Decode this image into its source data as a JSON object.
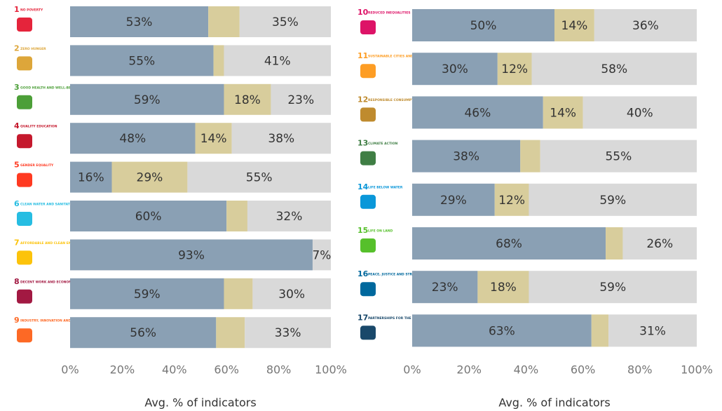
{
  "chart_data": [
    {
      "type": "bar",
      "orientation": "horizontal",
      "stacked": true,
      "categories": [
        "NO POVERTY",
        "ZERO HUNGER",
        "GOOD HEALTH AND WELL-BEING",
        "QUALITY EDUCATION",
        "GENDER EQUALITY",
        "CLEAN WATER AND SANITATION",
        "AFFORDABLE AND CLEAN ENERGY",
        "DECENT WORK AND ECONOMIC GROWTH",
        "INDUSTRY, INNOVATION AND INFRASTRUCTURE"
      ],
      "goal_numbers": [
        1,
        2,
        3,
        4,
        5,
        6,
        7,
        8,
        9
      ],
      "category_colors": [
        "#e5243b",
        "#dda63a",
        "#4c9f38",
        "#c5192d",
        "#ff3a21",
        "#26bde2",
        "#fcc30b",
        "#a21942",
        "#fd6925"
      ],
      "series": [
        {
          "color": "#8aa0b4",
          "values": [
            53,
            55,
            59,
            48,
            16,
            60,
            93,
            59,
            56
          ],
          "value_labels": [
            "53%",
            "55%",
            "59%",
            "48%",
            "16%",
            "60%",
            "93%",
            "59%",
            "56%"
          ]
        },
        {
          "color": "#d8cd9c",
          "values": [
            12,
            4,
            18,
            14,
            29,
            8,
            0,
            11,
            11
          ],
          "value_labels": [
            null,
            null,
            "18%",
            "14%",
            "29%",
            null,
            null,
            null,
            null
          ]
        },
        {
          "color": "#d9d9d9",
          "values": [
            35,
            41,
            23,
            38,
            55,
            32,
            7,
            30,
            33
          ],
          "value_labels": [
            "35%",
            "41%",
            "23%",
            "38%",
            "55%",
            "32%",
            "7%",
            "30%",
            "33%"
          ]
        }
      ],
      "xlim": [
        0,
        100
      ],
      "xticks": [
        {
          "value": 0,
          "label": "0%"
        },
        {
          "value": 20,
          "label": "20%"
        },
        {
          "value": 40,
          "label": "40%"
        },
        {
          "value": 60,
          "label": "60%"
        },
        {
          "value": 80,
          "label": "80%"
        },
        {
          "value": 100,
          "label": "100%"
        }
      ],
      "xlabel": "Avg. % of indicators"
    },
    {
      "type": "bar",
      "orientation": "horizontal",
      "stacked": true,
      "categories": [
        "REDUCED INEQUALITIES",
        "SUSTAINABLE CITIES AND COMMUNITIES",
        "RESPONSIBLE CONSUMPTION AND PRODUCTION",
        "CLIMATE ACTION",
        "LIFE BELOW WATER",
        "LIFE ON LAND",
        "PEACE, JUSTICE AND STRONG INSTITUTIONS",
        "PARTNERSHIPS FOR THE GOALS"
      ],
      "goal_numbers": [
        10,
        11,
        12,
        13,
        14,
        15,
        16,
        17
      ],
      "category_colors": [
        "#dd1367",
        "#fd9d24",
        "#bf8b2e",
        "#3f7e44",
        "#0a97d9",
        "#56c02b",
        "#00689d",
        "#19486a"
      ],
      "series": [
        {
          "color": "#8aa0b4",
          "values": [
            50,
            30,
            46,
            38,
            29,
            68,
            23,
            63
          ],
          "value_labels": [
            "50%",
            "30%",
            "46%",
            "38%",
            "29%",
            "68%",
            "23%",
            "63%"
          ]
        },
        {
          "color": "#d8cd9c",
          "values": [
            14,
            12,
            14,
            7,
            12,
            6,
            18,
            6
          ],
          "value_labels": [
            "14%",
            "12%",
            "14%",
            null,
            "12%",
            null,
            "18%",
            null
          ]
        },
        {
          "color": "#d9d9d9",
          "values": [
            36,
            58,
            40,
            55,
            59,
            26,
            59,
            31
          ],
          "value_labels": [
            "36%",
            "58%",
            "40%",
            "55%",
            "59%",
            "26%",
            "59%",
            "31%"
          ]
        }
      ],
      "xlim": [
        0,
        100
      ],
      "xticks": [
        {
          "value": 0,
          "label": "0%"
        },
        {
          "value": 20,
          "label": "20%"
        },
        {
          "value": 40,
          "label": "40%"
        },
        {
          "value": 60,
          "label": "60%"
        },
        {
          "value": 80,
          "label": "80%"
        },
        {
          "value": 100,
          "label": "100%"
        }
      ],
      "xlabel": "Avg. % of indicators"
    }
  ]
}
